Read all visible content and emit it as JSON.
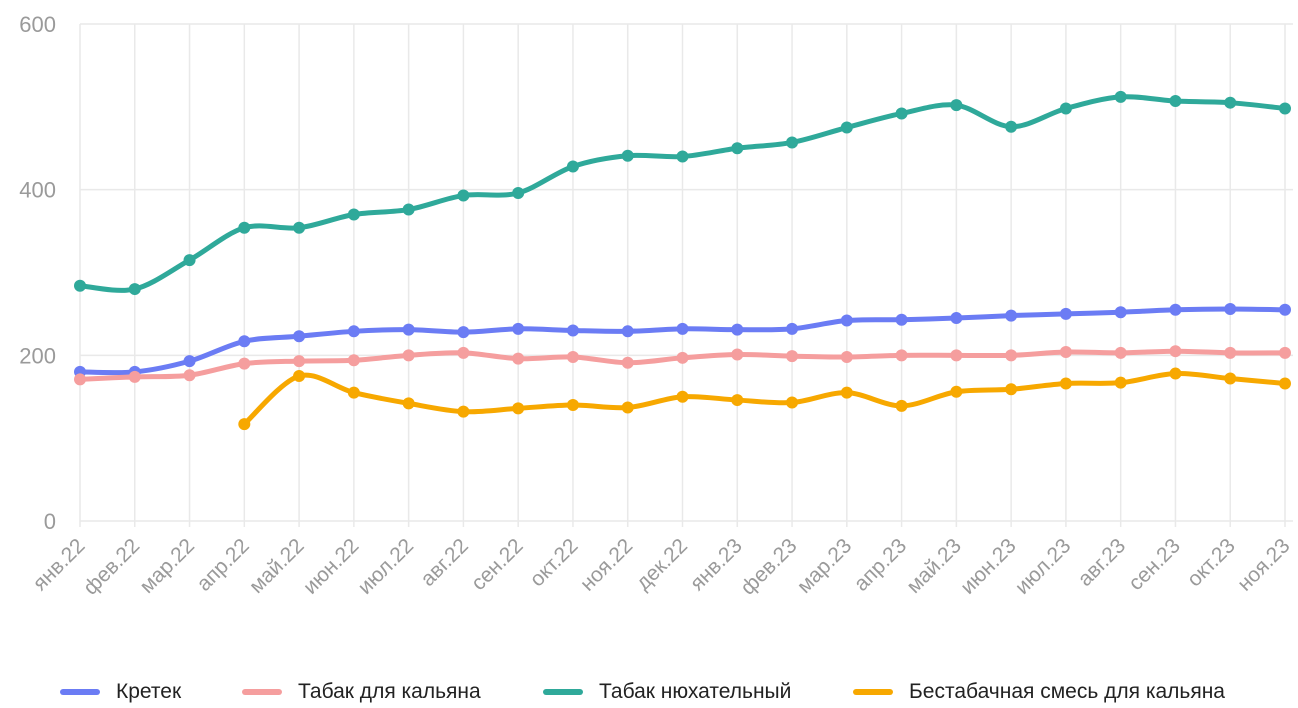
{
  "chart_data": {
    "type": "line",
    "categories": [
      "янв.22",
      "фев.22",
      "мар.22",
      "апр.22",
      "май.22",
      "июн.22",
      "июл.22",
      "авг.22",
      "сен.22",
      "окт.22",
      "ноя.22",
      "дек.22",
      "янв.23",
      "фев.23",
      "мар.23",
      "апр.23",
      "май.23",
      "июн.23",
      "июл.23",
      "авг.23",
      "сен.23",
      "окт.23",
      "ноя.23"
    ],
    "y_ticks": [
      "0",
      "200",
      "400",
      "600"
    ],
    "ylim": [
      0,
      600
    ],
    "grid": true,
    "legend_position": "bottom",
    "series": [
      {
        "name": "Кретек",
        "color": "#6b7cf4",
        "values": [
          180,
          180,
          193,
          217,
          223,
          229,
          231,
          228,
          232,
          230,
          229,
          232,
          231,
          232,
          242,
          243,
          245,
          248,
          250,
          252,
          255,
          256,
          255
        ]
      },
      {
        "name": "Табак для кальяна",
        "color": "#f59e9e",
        "values": [
          171,
          174,
          176,
          190,
          193,
          194,
          200,
          203,
          196,
          198,
          191,
          197,
          201,
          199,
          198,
          200,
          200,
          200,
          204,
          203,
          205,
          203,
          203
        ]
      },
      {
        "name": "Табак нюхательный",
        "color": "#2fa99a",
        "values": [
          284,
          280,
          315,
          354,
          354,
          370,
          376,
          393,
          396,
          428,
          441,
          440,
          450,
          457,
          475,
          492,
          502,
          476,
          498,
          512,
          507,
          505,
          498
        ]
      },
      {
        "name": "Бестабачная смесь для кальяна",
        "color": "#f7a800",
        "values": [
          null,
          null,
          null,
          117,
          175,
          155,
          142,
          132,
          136,
          140,
          137,
          150,
          146,
          143,
          155,
          139,
          156,
          159,
          166,
          167,
          178,
          172,
          166
        ]
      }
    ]
  }
}
